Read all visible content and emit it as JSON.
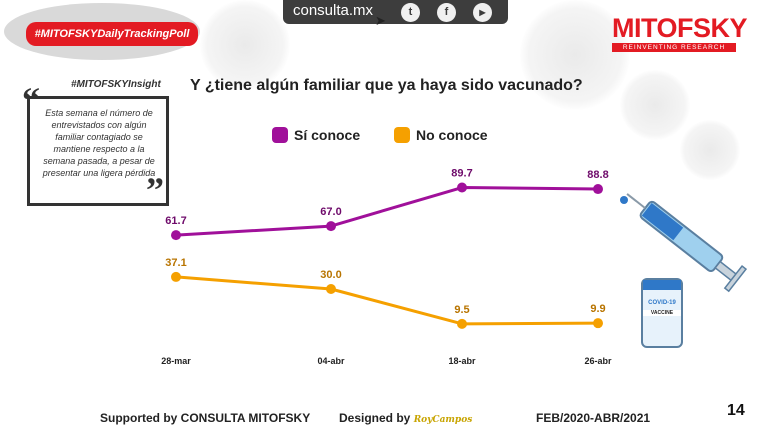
{
  "header": {
    "site": "consulta.mx",
    "social": [
      {
        "name": "twitter-icon",
        "glyph": "t"
      },
      {
        "name": "facebook-icon",
        "glyph": "f"
      },
      {
        "name": "youtube-icon",
        "glyph": "▶"
      }
    ],
    "poll_tag": "#MITOFSKYDailyTrackingPoll",
    "logo_word": "MITOFSKY",
    "logo_tagline": "REINVENTING RESEARCH"
  },
  "insight": {
    "title": "#MITOFSKYInsight",
    "text": "Esta semana el número de entrevistados con algún familiar contagiado se mantiene respecto a la semana pasada, a pesar de presentar una ligera pérdida"
  },
  "vaccine": {
    "label_1": "COVID-19",
    "label_2": "VACCINE"
  },
  "chart_data": {
    "type": "line",
    "title": "Y ¿tiene algún  familiar que ya haya sido vacunado?",
    "categories": [
      "28-mar",
      "04-abr",
      "18-abr",
      "26-abr"
    ],
    "series": [
      {
        "name": "Sí conoce",
        "color": "#a0109a",
        "values": [
          61.7,
          67.0,
          89.7,
          88.8
        ],
        "labels": [
          "61.7",
          "67.0",
          "89.7",
          "88.8"
        ]
      },
      {
        "name": "No conoce",
        "color": "#f5a000",
        "values": [
          37.1,
          30.0,
          9.5,
          9.9
        ],
        "labels": [
          "37.1",
          "30.0",
          "9.5",
          "9.9"
        ]
      }
    ],
    "ylim": [
      0,
      100
    ],
    "legend": "top"
  },
  "footer": {
    "supported": "Supported by  CONSULTA  MITOFSKY",
    "designed": "Designed by",
    "designer": "RoyCampos",
    "period": "FEB/2020-ABR/2021",
    "page": "14"
  }
}
